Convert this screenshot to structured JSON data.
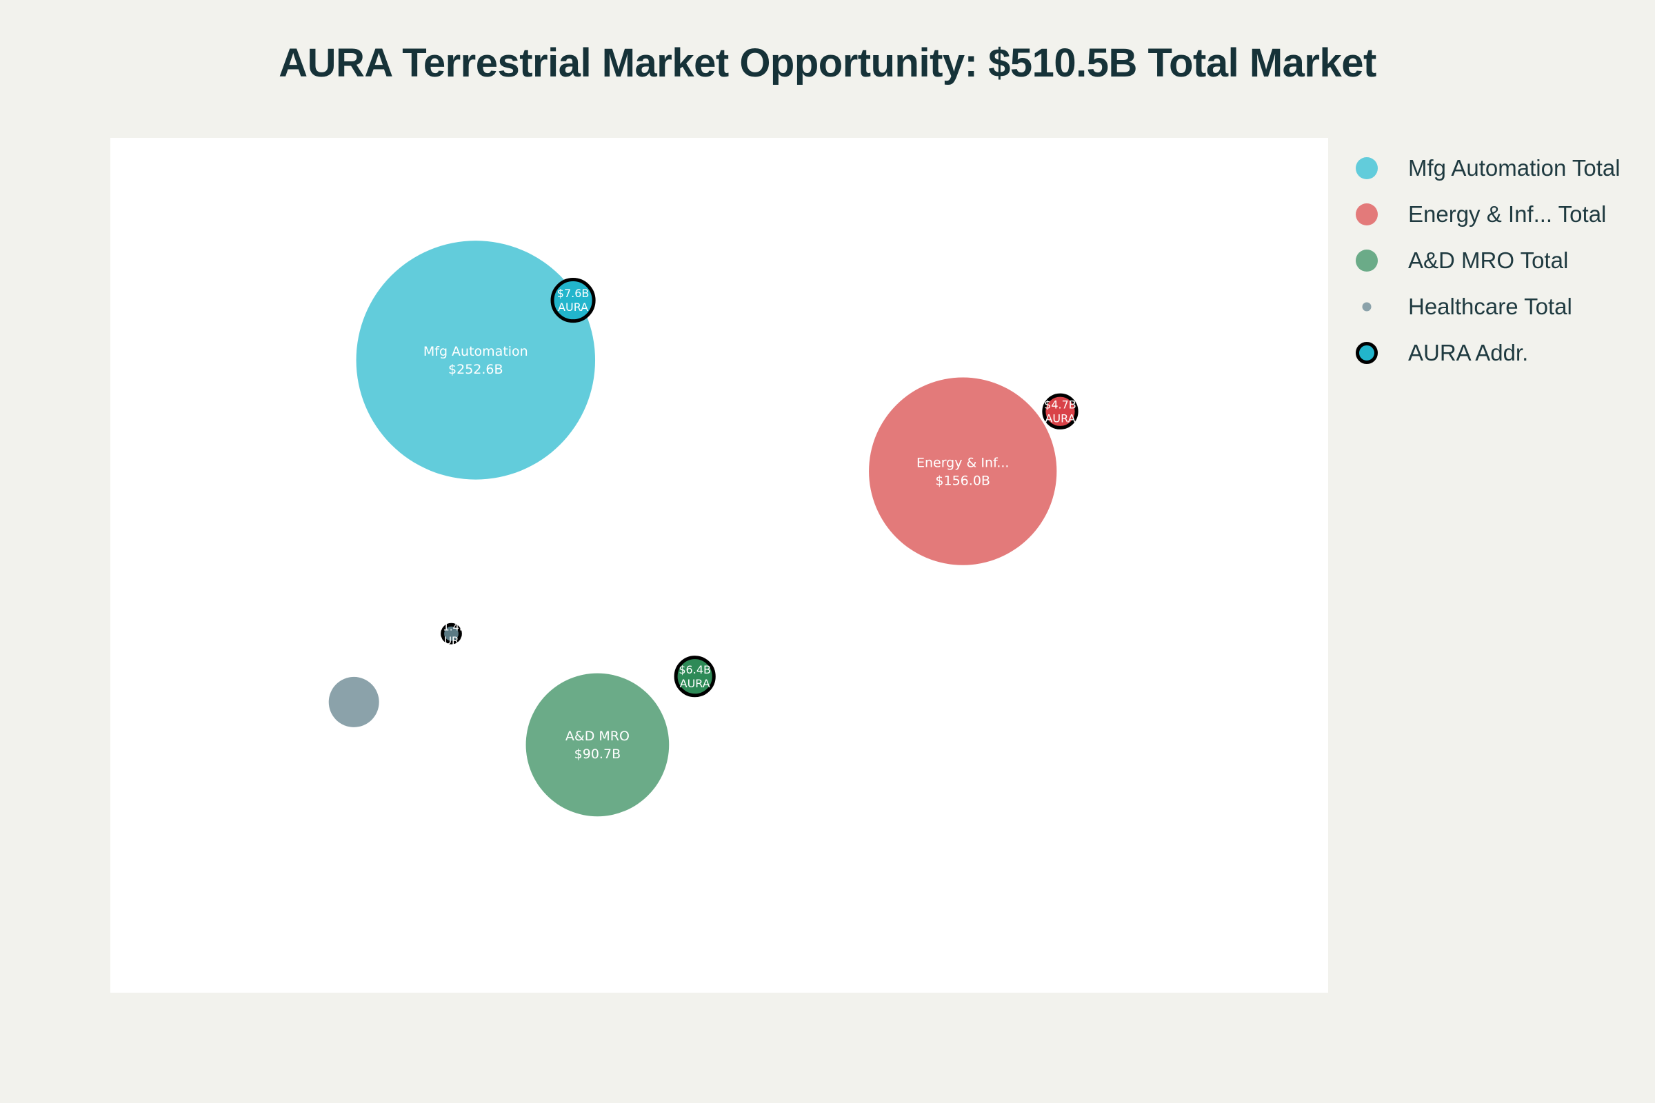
{
  "chart_data": {
    "type": "scatter",
    "title": "AURA Terrestrial Market Opportunity: $510.5B Total Market",
    "legend_position": "right",
    "grid": false,
    "xlim": [
      0,
      100
    ],
    "ylim": [
      0,
      100
    ],
    "series": [
      {
        "name": "Mfg Automation Total",
        "color": "#62ccdb",
        "points": [
          {
            "x": 30,
            "y": 74,
            "value": 252.6,
            "label_lines": [
              "Mfg Automation",
              "$252.6B"
            ]
          }
        ]
      },
      {
        "name": "Energy & Inf... Total",
        "color": "#e37a7a",
        "points": [
          {
            "x": 70,
            "y": 61,
            "value": 156.0,
            "label_lines": [
              "Energy & Inf...",
              "$156.0B"
            ]
          }
        ]
      },
      {
        "name": "A&D MRO Total",
        "color": "#6bab88",
        "points": [
          {
            "x": 40,
            "y": 29,
            "value": 90.7,
            "label_lines": [
              "A&D MRO",
              "$90.7B"
            ]
          }
        ]
      },
      {
        "name": "Healthcare Total",
        "color": "#8ba2aa",
        "points": [
          {
            "x": 20,
            "y": 34,
            "value": 11.2,
            "label_lines": []
          }
        ]
      },
      {
        "name": "AURA Addr.",
        "color": "#22b5cc",
        "outline": "#000000",
        "points": [
          {
            "x": 38,
            "y": 81,
            "value": 7.6,
            "color": "#22b5cc",
            "label_lines": [
              "$7.6B",
              "AURA"
            ]
          },
          {
            "x": 78,
            "y": 68,
            "value": 4.7,
            "color": "#d94248",
            "label_lines": [
              "$4.7B",
              "AURA"
            ]
          },
          {
            "x": 48,
            "y": 37,
            "value": 6.4,
            "color": "#2e8a57",
            "label_lines": [
              "$6.4B",
              "AURA"
            ]
          },
          {
            "x": 28,
            "y": 42,
            "value": 1.4,
            "color": "#5b7a84",
            "label_lines": [
              "$1.4B",
              "AURA"
            ]
          }
        ]
      }
    ]
  }
}
